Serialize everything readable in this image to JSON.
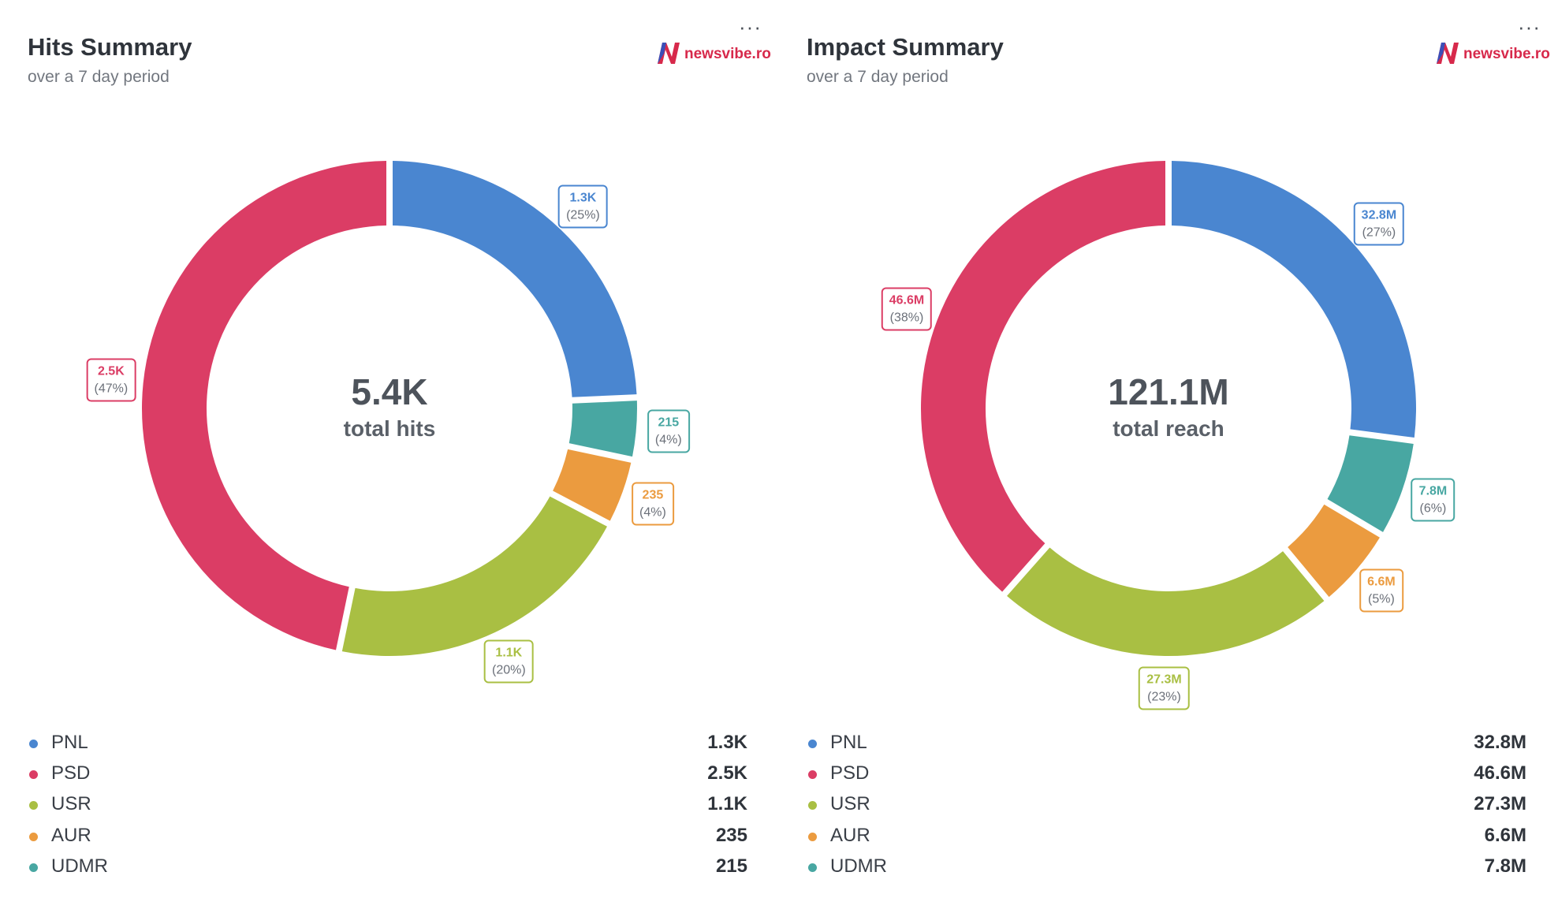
{
  "colors": {
    "PNL": "#4a86d0",
    "PSD": "#db3d65",
    "USR": "#a9bf43",
    "AUR": "#eb9b3f",
    "UDMR": "#48a7a2"
  },
  "brand": {
    "logo_text": "newsvibe.ro",
    "logo_icon": "newsvibe-n-logo"
  },
  "more_label": "···",
  "panels": [
    {
      "title": "Hits Summary",
      "subtitle": "over a 7 day period",
      "center": {
        "value": "5.4K",
        "label": "total hits"
      },
      "legend": [
        {
          "name": "PNL",
          "value": "1.3K"
        },
        {
          "name": "PSD",
          "value": "2.5K"
        },
        {
          "name": "USR",
          "value": "1.1K"
        },
        {
          "name": "AUR",
          "value": "235"
        },
        {
          "name": "UDMR",
          "value": "215"
        }
      ]
    },
    {
      "title": "Impact Summary",
      "subtitle": "over a 7 day period",
      "center": {
        "value": "121.1M",
        "label": "total reach"
      },
      "legend": [
        {
          "name": "PNL",
          "value": "32.8M"
        },
        {
          "name": "PSD",
          "value": "46.6M"
        },
        {
          "name": "USR",
          "value": "27.3M"
        },
        {
          "name": "AUR",
          "value": "6.6M"
        },
        {
          "name": "UDMR",
          "value": "7.8M"
        }
      ]
    }
  ],
  "chart_data": [
    {
      "type": "pie",
      "donut": true,
      "title": "Hits Summary",
      "subtitle": "over a 7 day period",
      "center_value": "5.4K",
      "center_label": "total hits",
      "slices": [
        {
          "name": "PNL",
          "value": 1300,
          "display": "1.3K",
          "percent": "(25%)"
        },
        {
          "name": "UDMR",
          "value": 215,
          "display": "215",
          "percent": "(4%)"
        },
        {
          "name": "AUR",
          "value": 235,
          "display": "235",
          "percent": "(4%)"
        },
        {
          "name": "USR",
          "value": 1100,
          "display": "1.1K",
          "percent": "(20%)"
        },
        {
          "name": "PSD",
          "value": 2500,
          "display": "2.5K",
          "percent": "(47%)"
        }
      ]
    },
    {
      "type": "pie",
      "donut": true,
      "title": "Impact Summary",
      "subtitle": "over a 7 day period",
      "center_value": "121.1M",
      "center_label": "total reach",
      "slices": [
        {
          "name": "PNL",
          "value": 32.8,
          "display": "32.8M",
          "percent": "(27%)"
        },
        {
          "name": "UDMR",
          "value": 7.8,
          "display": "7.8M",
          "percent": "(6%)"
        },
        {
          "name": "AUR",
          "value": 6.6,
          "display": "6.6M",
          "percent": "(5%)"
        },
        {
          "name": "USR",
          "value": 27.3,
          "display": "27.3M",
          "percent": "(23%)"
        },
        {
          "name": "PSD",
          "value": 46.6,
          "display": "46.6M",
          "percent": "(38%)"
        }
      ]
    }
  ]
}
